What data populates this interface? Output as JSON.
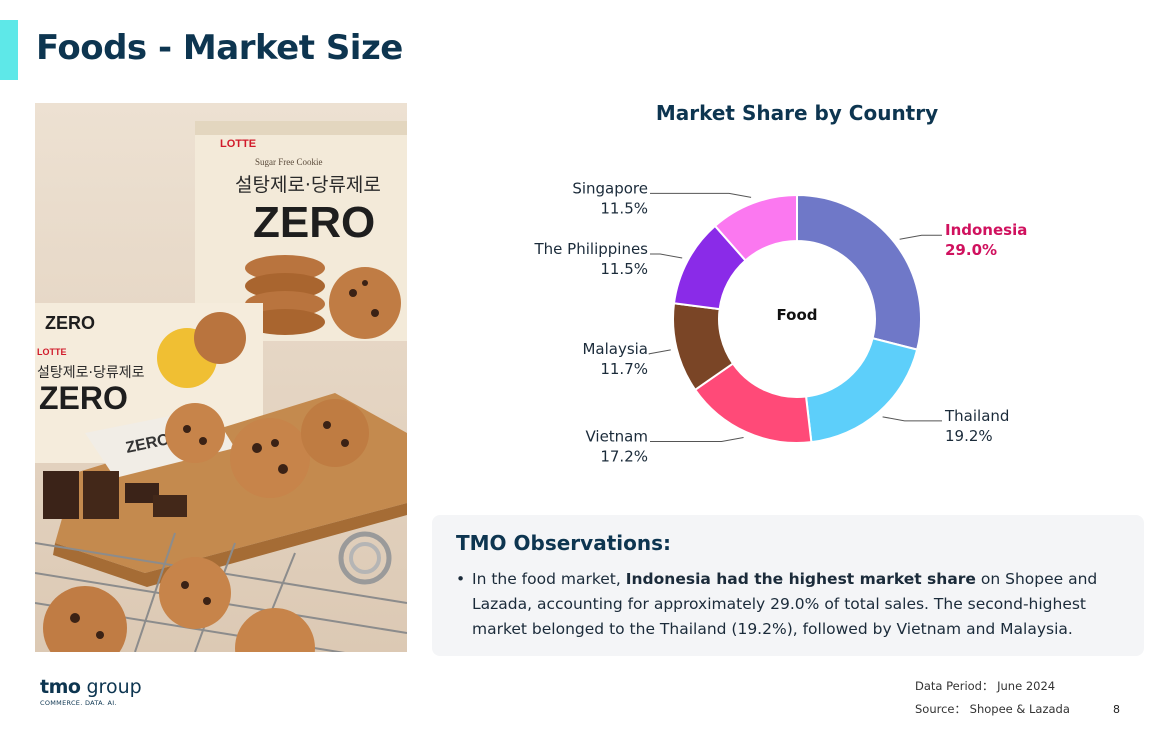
{
  "page": {
    "title": "Foods - Market Size",
    "page_number": "8"
  },
  "chart_data": {
    "type": "pie",
    "title": "Market Share by Country",
    "center_label": "Food",
    "unit": "%",
    "slices": [
      {
        "label": "Indonesia",
        "value": 29.0,
        "value_label": "29.0%",
        "color": "#6f78c8",
        "highlight": true
      },
      {
        "label": "Thailand",
        "value": 19.2,
        "value_label": "19.2%",
        "color": "#5dcffa",
        "highlight": false
      },
      {
        "label": "Vietnam",
        "value": 17.2,
        "value_label": "17.2%",
        "color": "#ff4a78",
        "highlight": false
      },
      {
        "label": "Malaysia",
        "value": 11.7,
        "value_label": "11.7%",
        "color": "#7a4526",
        "highlight": false
      },
      {
        "label": "The Philippines",
        "value": 11.5,
        "value_label": "11.5%",
        "color": "#8a2be8",
        "highlight": false
      },
      {
        "label": "Singapore",
        "value": 11.5,
        "value_label": "11.5%",
        "color": "#fb78f0",
        "highlight": false
      }
    ],
    "highlight_color": "#d0115e"
  },
  "observations": {
    "title": "TMO Observations:",
    "item": {
      "before": "In the food market, ",
      "bold": "Indonesia had the highest market share",
      "after": " on Shopee and Lazada, accounting for approximately 29.0% of total sales. The second-highest market belonged to the Thailand (19.2%), followed by Vietnam and Malaysia."
    }
  },
  "footer": {
    "logo_tmo": "tmo",
    "logo_group": "group",
    "logo_tagline": "COMMERCE. DATA. AI.",
    "data_period": "Data Period： June 2024",
    "source": "Source： Shopee & Lazada"
  },
  "photo": {
    "brand": "LOTTE",
    "product": "ZERO",
    "subtitle": "Sugar Free Cookie",
    "korean": "설탕제로·당류제로"
  }
}
